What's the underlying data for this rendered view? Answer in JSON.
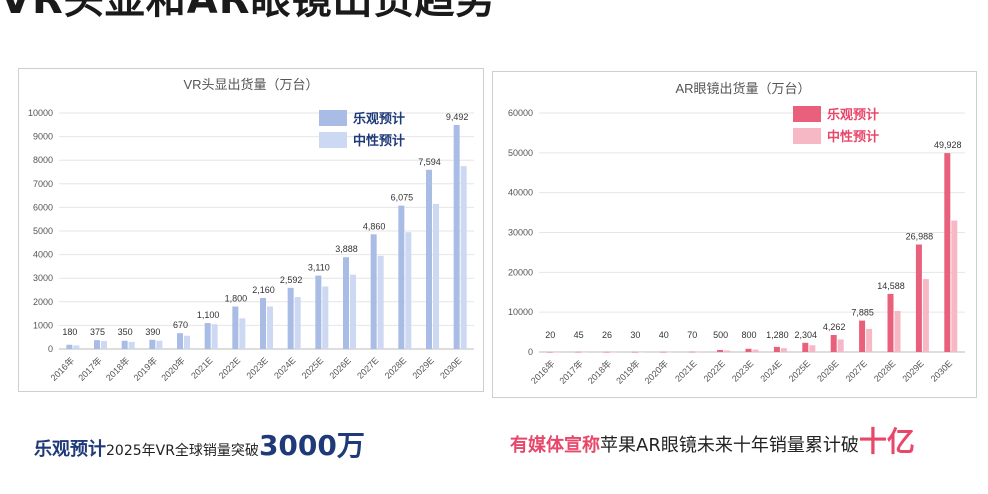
{
  "page": {
    "title": "VR头显和AR眼镜出货趋势"
  },
  "captions": {
    "vr": {
      "highlight": "乐观预计",
      "text": "2025年VR全球销量突破",
      "big": "3000万"
    },
    "ar": {
      "highlight": "有媒体宣称",
      "text": "苹果AR眼镜未来十年销量累计破",
      "big": "十亿"
    }
  },
  "chart_data": [
    {
      "type": "bar",
      "title": "VR头显出货量（万台）",
      "categories": [
        "2016年",
        "2017年",
        "2018年",
        "2019年",
        "2020年",
        "2021E",
        "2022E",
        "2023E",
        "2024E",
        "2025E",
        "2026E",
        "2027E",
        "2028E",
        "2029E",
        "2030E"
      ],
      "series": [
        {
          "name": "乐观预计",
          "color": "#a9bce6",
          "values": [
            180,
            375,
            350,
            390,
            670,
            1100,
            1800,
            2160,
            2592,
            3110,
            3888,
            4860,
            6075,
            7594,
            9492
          ]
        },
        {
          "name": "中性预计",
          "color": "#cdd9f2",
          "values": [
            150,
            340,
            300,
            350,
            560,
            1050,
            1300,
            1800,
            2200,
            2650,
            3150,
            3950,
            4950,
            6150,
            7750
          ]
        }
      ],
      "data_labels": [
        "180",
        "375",
        "350",
        "390",
        "670",
        "1,100",
        "1,800",
        "2,160",
        "2,592",
        "3,110",
        "3,888",
        "4,860",
        "6,075",
        "7,594",
        "9,492"
      ],
      "ylim": [
        0,
        10000
      ],
      "yticks": [
        0,
        1000,
        2000,
        3000,
        4000,
        5000,
        6000,
        7000,
        8000,
        9000,
        10000
      ],
      "grid": true,
      "legend": "top-right",
      "legend_text_color": "#1f3a78"
    },
    {
      "type": "bar",
      "title": "AR眼镜出货量（万台）",
      "categories": [
        "2016年",
        "2017年",
        "2018年",
        "2019年",
        "2020年",
        "2021E",
        "2022E",
        "2023E",
        "2024E",
        "2025E",
        "2026E",
        "2027E",
        "2028E",
        "2029E",
        "2030E"
      ],
      "series": [
        {
          "name": "乐观预计",
          "color": "#e8607c",
          "values": [
            20,
            45,
            26,
            30,
            40,
            70,
            500,
            800,
            1280,
            2304,
            4262,
            7885,
            14588,
            26988,
            49928
          ]
        },
        {
          "name": "中性预计",
          "color": "#f5b8c4",
          "values": [
            15,
            35,
            20,
            25,
            30,
            60,
            380,
            600,
            950,
            1700,
            3150,
            5800,
            10300,
            18300,
            33000
          ]
        }
      ],
      "data_labels": [
        "20",
        "45",
        "26",
        "30",
        "40",
        "70",
        "500",
        "800",
        "1,280",
        "2,304",
        "4,262",
        "7,885",
        "14,588",
        "26,988",
        "49,928"
      ],
      "ylim": [
        0,
        60000
      ],
      "yticks": [
        0,
        10000,
        20000,
        30000,
        40000,
        50000,
        60000
      ],
      "grid": true,
      "legend": "top-right",
      "legend_text_color": "#e8476a"
    }
  ]
}
